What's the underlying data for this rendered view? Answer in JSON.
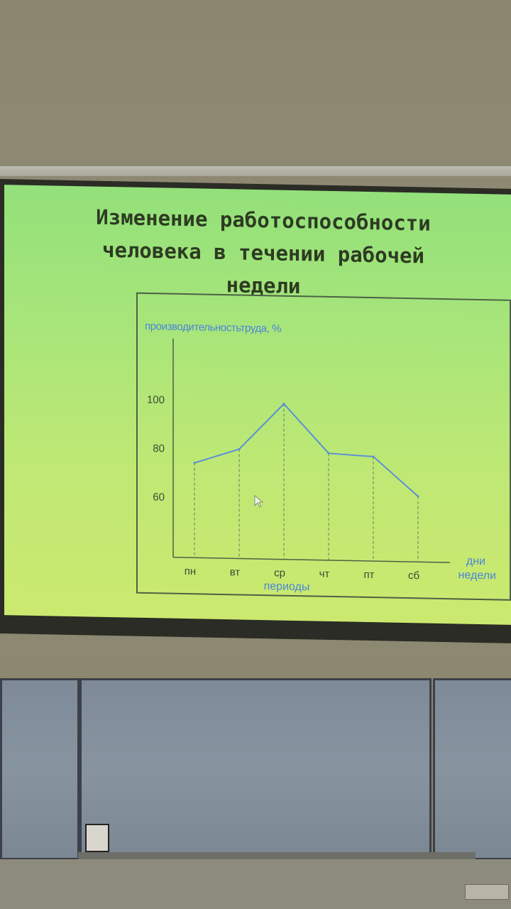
{
  "slide": {
    "title": "Изменение работоспособности\nчеловека в течении рабочей\nнедели"
  },
  "chart_data": {
    "type": "line",
    "ylabel": "производительностьтруда, %",
    "xlabel": "периоды",
    "x_axis_end_label": "дни\nнедели",
    "categories": [
      "пн",
      "вт",
      "ср",
      "чт",
      "пт",
      "сб"
    ],
    "values": [
      74,
      80,
      99,
      79,
      78,
      62
    ],
    "yticks": [
      60,
      80,
      100
    ],
    "ylim": [
      35,
      125
    ],
    "grid": false,
    "drop_lines": true,
    "colors": {
      "line": "#5b8fd6",
      "axis_label": "#4a86d8",
      "tick_label": "#3a4a34"
    }
  }
}
